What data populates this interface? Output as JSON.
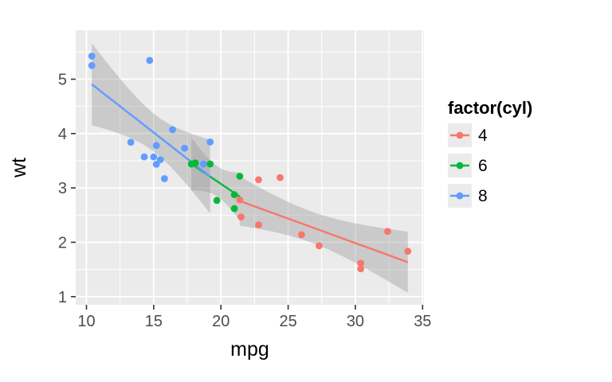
{
  "page": {
    "background": "#FFFFFF"
  },
  "chart_data": {
    "type": "scatter",
    "title": "",
    "xlabel": "mpg",
    "ylabel": "wt",
    "xlim": [
      9.2,
      35.1
    ],
    "ylim": [
      0.85,
      5.9
    ],
    "x_ticks": [
      10,
      15,
      20,
      25,
      30,
      35
    ],
    "y_ticks": [
      1,
      2,
      3,
      4,
      5
    ],
    "x_minor_ticks": [
      12.5,
      17.5,
      22.5,
      27.5,
      32.5
    ],
    "y_minor_ticks": [
      1.5,
      2.5,
      3.5,
      4.5,
      5.5
    ],
    "grid": true,
    "smooth_method": "lm",
    "confidence_level": 0.95,
    "panel_background": "#EBEBEB",
    "grid_color": "#FFFFFF",
    "tick_color": "#333333",
    "tick_label_color": "#4D4D4D",
    "axis_title_color": "#000000",
    "ribbon_color": "#999999",
    "ribbon_opacity": 0.4,
    "legend": {
      "title": "factor(cyl)",
      "position": "right",
      "key_background": "#EBEBEB",
      "entries": [
        {
          "label": "4",
          "color": "#F8766D"
        },
        {
          "label": "6",
          "color": "#00BA38"
        },
        {
          "label": "8",
          "color": "#619CFF"
        }
      ]
    },
    "series": [
      {
        "name": "4",
        "color": "#F8766D",
        "points": [
          [
            22.8,
            2.32
          ],
          [
            24.4,
            3.19
          ],
          [
            22.8,
            3.15
          ],
          [
            32.4,
            2.2
          ],
          [
            30.4,
            1.615
          ],
          [
            33.9,
            1.835
          ],
          [
            21.5,
            2.465
          ],
          [
            27.3,
            1.935
          ],
          [
            26.0,
            2.14
          ],
          [
            30.4,
            1.513
          ],
          [
            21.4,
            2.78
          ]
        ]
      },
      {
        "name": "6",
        "color": "#00BA38",
        "points": [
          [
            21.0,
            2.62
          ],
          [
            21.0,
            2.875
          ],
          [
            21.4,
            3.215
          ],
          [
            18.1,
            3.46
          ],
          [
            19.2,
            3.44
          ],
          [
            17.8,
            3.44
          ],
          [
            19.7,
            2.77
          ]
        ]
      },
      {
        "name": "8",
        "color": "#619CFF",
        "points": [
          [
            18.7,
            3.44
          ],
          [
            14.3,
            3.57
          ],
          [
            16.4,
            4.07
          ],
          [
            17.3,
            3.73
          ],
          [
            15.2,
            3.78
          ],
          [
            10.4,
            5.25
          ],
          [
            10.4,
            5.424
          ],
          [
            14.7,
            5.345
          ],
          [
            15.5,
            3.52
          ],
          [
            15.2,
            3.435
          ],
          [
            13.3,
            3.84
          ],
          [
            19.2,
            3.845
          ],
          [
            15.8,
            3.17
          ],
          [
            15.0,
            3.57
          ]
        ]
      }
    ]
  }
}
